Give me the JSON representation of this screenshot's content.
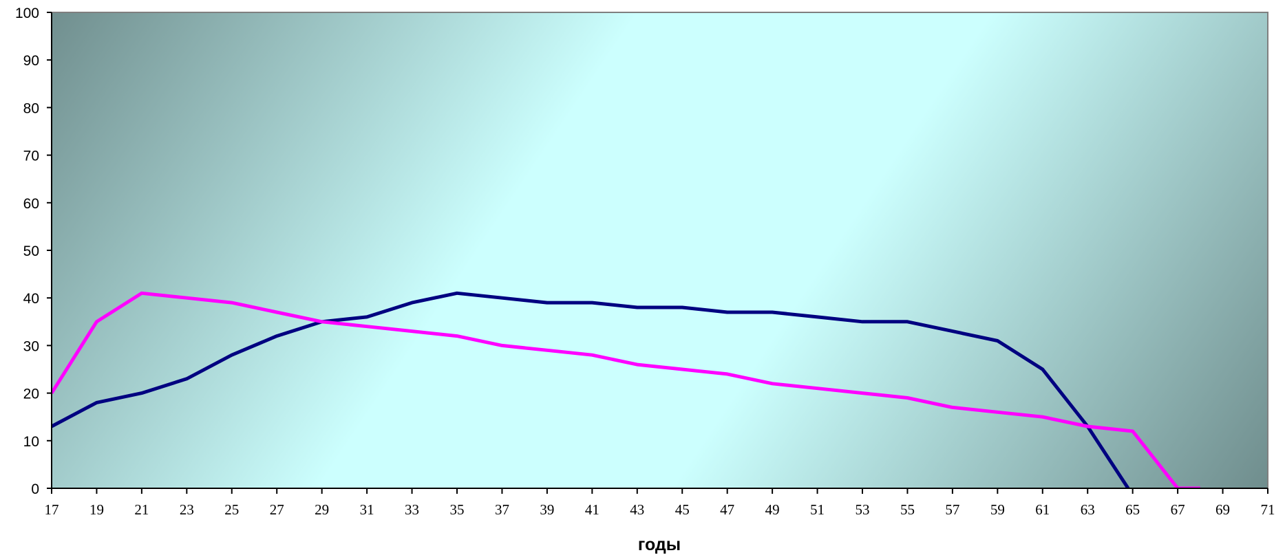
{
  "chart_data": {
    "type": "line",
    "title": "",
    "xlabel": "годы",
    "ylabel": "",
    "xlim": [
      17,
      71
    ],
    "ylim": [
      0,
      100
    ],
    "yticks": [
      "0",
      "10",
      "20",
      "30",
      "40",
      "50",
      "60",
      "70",
      "80",
      "90",
      "100"
    ],
    "xticks": [
      "17",
      "19",
      "21",
      "23",
      "25",
      "27",
      "29",
      "31",
      "33",
      "35",
      "37",
      "39",
      "41",
      "43",
      "45",
      "47",
      "49",
      "51",
      "53",
      "55",
      "57",
      "59",
      "61",
      "63",
      "65",
      "67",
      "69",
      "71"
    ],
    "grid": false,
    "legend": "none",
    "colors": {
      "plot_light": "#ccfffe",
      "plot_dark": "#5e7878",
      "axis": "#7f7f7f"
    },
    "series": [
      {
        "color": "#000080",
        "x": [
          17,
          19,
          21,
          23,
          25,
          27,
          29,
          31,
          33,
          35,
          37,
          39,
          41,
          43,
          45,
          47,
          49,
          51,
          53,
          55,
          57,
          59,
          61,
          63,
          64.8
        ],
        "y": [
          13,
          18,
          20,
          23,
          28,
          32,
          35,
          36,
          39,
          41,
          40,
          39,
          39,
          38,
          38,
          37,
          37,
          36,
          35,
          35,
          33,
          31,
          25,
          13,
          0
        ]
      },
      {
        "color": "#ff00ff",
        "x": [
          17,
          19,
          21,
          23,
          25,
          27,
          29,
          31,
          33,
          35,
          37,
          39,
          41,
          43,
          45,
          47,
          49,
          51,
          53,
          55,
          57,
          59,
          61,
          63,
          65,
          67,
          68
        ],
        "y": [
          20,
          35,
          41,
          40,
          39,
          37,
          35,
          34,
          33,
          32,
          30,
          29,
          28,
          26,
          25,
          24,
          22,
          21,
          20,
          19,
          17,
          16,
          15,
          13,
          12,
          0,
          0
        ]
      }
    ]
  }
}
